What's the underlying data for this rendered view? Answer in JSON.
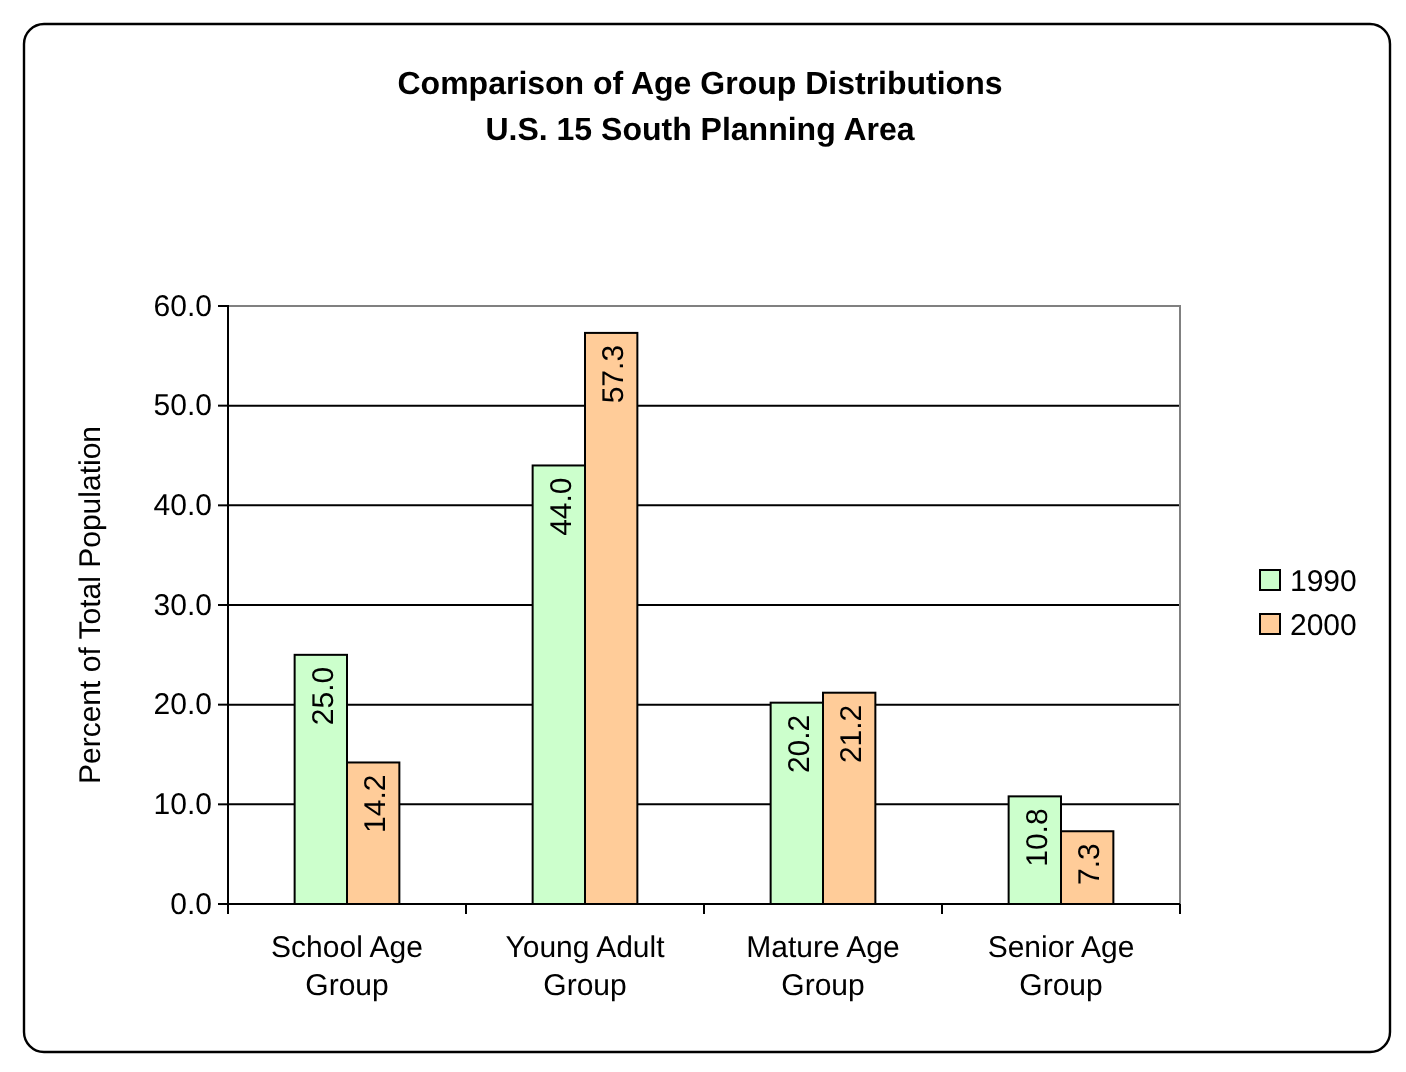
{
  "chart_data": {
    "type": "bar",
    "title": "Comparison of Age Group Distributions",
    "subtitle": "U.S. 15 South Planning Area",
    "ylabel": "Percent of Total Population",
    "categories": [
      "School Age Group",
      "Young Adult Group",
      "Mature Age Group",
      "Senior Age Group"
    ],
    "series": [
      {
        "name": "1990",
        "color": "#ccffcc",
        "values": [
          25.0,
          44.0,
          20.2,
          10.8
        ],
        "value_labels": [
          "25.0",
          "44.0",
          "20.2",
          "10.8"
        ]
      },
      {
        "name": "2000",
        "color": "#ffcc99",
        "values": [
          14.2,
          57.3,
          21.2,
          7.3
        ],
        "value_labels": [
          "14.2",
          "57.3",
          "21.2",
          "7.3"
        ]
      }
    ],
    "ylim": [
      0,
      60
    ],
    "yticks": [
      {
        "value": 0,
        "label": "0.0"
      },
      {
        "value": 10,
        "label": "10.0"
      },
      {
        "value": 20,
        "label": "20.0"
      },
      {
        "value": 30,
        "label": "30.0"
      },
      {
        "value": 40,
        "label": "40.0"
      },
      {
        "value": 50,
        "label": "50.0"
      },
      {
        "value": 60,
        "label": "60.0"
      }
    ],
    "grid": "y",
    "legend": "right"
  }
}
